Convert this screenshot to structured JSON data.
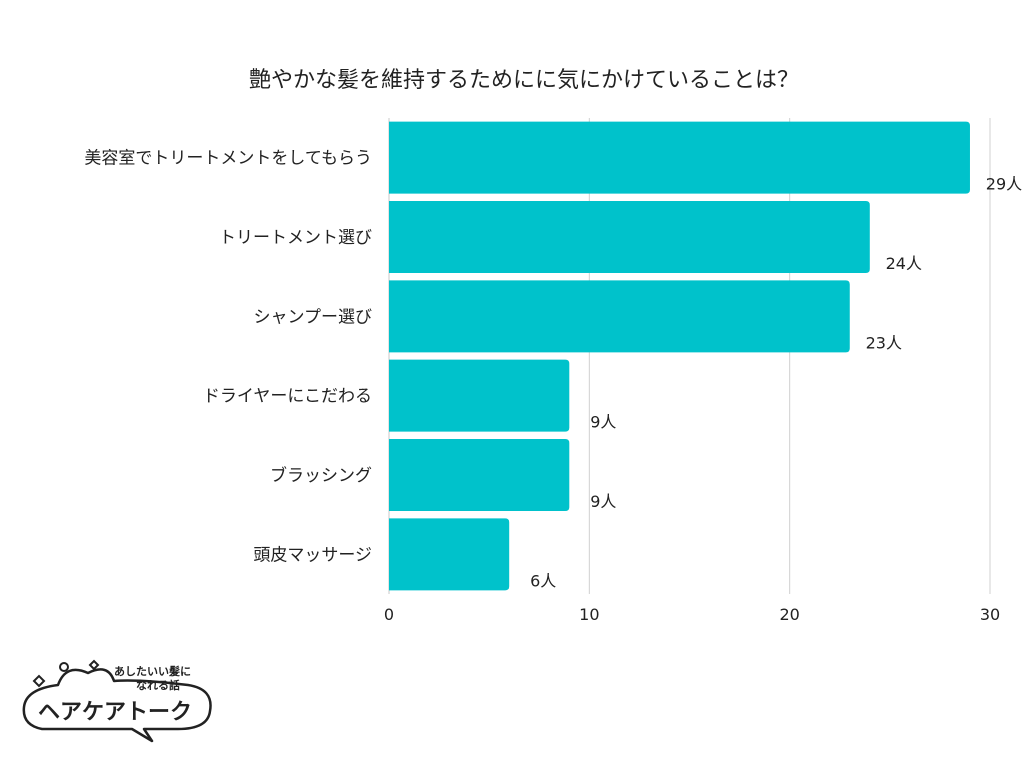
{
  "chart_data": {
    "type": "bar",
    "orientation": "horizontal",
    "title": "艶やかな髪を維持するためにに気にかけていることは？",
    "categories": [
      "美容室でトリートメントをしてもらう",
      "トリートメント選び",
      "シャンプー選び",
      "ドライヤーにこだわる",
      "ブラッシング",
      "頭皮マッサージ"
    ],
    "values": [
      29,
      24,
      23,
      9,
      9,
      6
    ],
    "value_suffix": "人",
    "xlim": [
      0,
      30
    ],
    "xticks": [
      0,
      10,
      20,
      30
    ],
    "grid": true,
    "bar_color": "#00c2cb"
  },
  "logo": {
    "tagline_line1": "あしたいい髪に",
    "tagline_line2": "なれる話",
    "name": "ヘアケアトーク"
  }
}
